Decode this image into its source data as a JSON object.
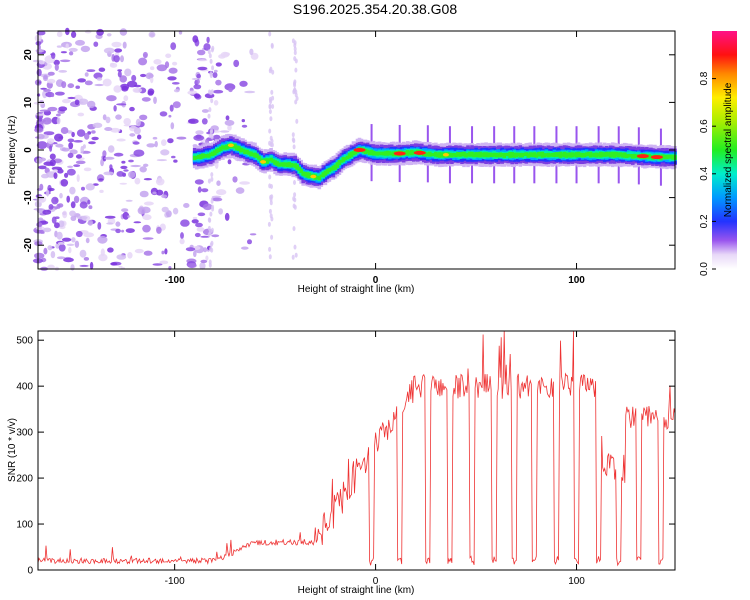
{
  "title": "S196.2025.354.20.38.G08",
  "chart_data": [
    {
      "type": "heatmap",
      "name": "spectrogram",
      "xlabel": "Height of straight line (km)",
      "ylabel": "Frequency (Hz)",
      "xlim": [
        -168,
        149
      ],
      "ylim": [
        -25,
        25
      ],
      "xticks": [
        -100,
        0,
        100
      ],
      "yticks": [
        -20,
        -10,
        0,
        10,
        20
      ],
      "colorbar": {
        "label": "Normalized spectral amplitude",
        "range": [
          0,
          1
        ],
        "ticks": [
          0.0,
          0.2,
          0.4,
          0.6,
          0.8
        ]
      },
      "peak_track": {
        "x": [
          -88,
          -82,
          -76,
          -72,
          -68,
          -64,
          -60,
          -56,
          -52,
          -48,
          -44,
          -40,
          -36,
          -32,
          -28,
          -24,
          -20,
          -16,
          -12,
          -8,
          -4,
          0,
          10,
          20,
          30,
          40,
          50,
          60,
          70,
          80,
          90,
          100,
          110,
          120,
          130,
          140,
          149
        ],
        "y": [
          -1.5,
          -1.0,
          0.5,
          1.0,
          0.3,
          -0.5,
          -1.0,
          -2.5,
          -2.0,
          -3.0,
          -3.0,
          -3.2,
          -5.0,
          -5.5,
          -5.8,
          -4.5,
          -3.5,
          -2.0,
          -1.0,
          0.0,
          -0.3,
          -0.8,
          -0.8,
          -0.5,
          -1.0,
          -1.0,
          -1.0,
          -1.0,
          -1.0,
          -1.0,
          -1.0,
          -1.0,
          -1.0,
          -1.0,
          -1.2,
          -1.5,
          -1.5
        ]
      }
    },
    {
      "type": "line",
      "name": "snr",
      "xlabel": "Height of straight line (km)",
      "ylabel": "SNR (10 * v/v)",
      "xlim": [
        -168,
        149
      ],
      "ylim": [
        0,
        520
      ],
      "xticks": [
        -100,
        0,
        100
      ],
      "yticks": [
        0,
        100,
        200,
        300,
        400,
        500
      ],
      "color": "#ee3333",
      "series_description": "noisy SNR trace sampled every 0.5 km",
      "baseline_segments": [
        {
          "x": [
            -168,
            -80
          ],
          "y": [
            20,
            20
          ]
        },
        {
          "x": [
            -80,
            -60
          ],
          "y": [
            20,
            60
          ]
        },
        {
          "x": [
            -60,
            -30
          ],
          "y": [
            60,
            60
          ]
        },
        {
          "x": [
            -30,
            -5
          ],
          "y": [
            60,
            240
          ]
        },
        {
          "x": [
            -5,
            20
          ],
          "y": [
            240,
            400
          ]
        },
        {
          "x": [
            20,
            110
          ],
          "y": [
            400,
            400
          ]
        },
        {
          "x": [
            110,
            112
          ],
          "y": [
            400,
            400
          ]
        },
        {
          "x": [
            112,
            124
          ],
          "y": [
            220,
            220
          ]
        },
        {
          "x": [
            124,
            149
          ],
          "y": [
            330,
            330
          ]
        }
      ],
      "dropouts_x": [
        -2,
        12,
        26,
        37,
        48,
        59,
        69,
        79,
        90,
        100,
        111,
        121,
        131,
        142
      ],
      "dropout_level": 10
    }
  ]
}
